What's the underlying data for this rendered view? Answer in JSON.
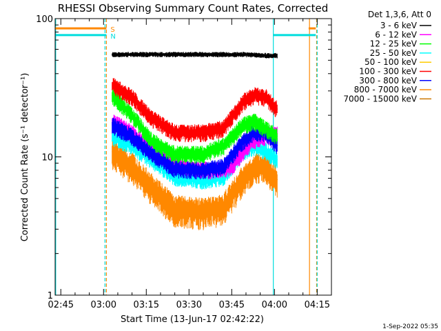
{
  "chart_data": {
    "type": "line",
    "title": "RHESSI Observing Summary Count Rates, Corrected",
    "xlabel": "Start Time (13-Jun-17 02:42:22)",
    "ylabel": "Corrected Count Rate (s⁻¹ detector⁻¹)",
    "yscale": "log",
    "ylim": [
      1,
      100
    ],
    "xlim_minutes": [
      163,
      260
    ],
    "x_ticks": [
      {
        "label": "02:45",
        "minute": 165
      },
      {
        "label": "03:00",
        "minute": 180
      },
      {
        "label": "03:15",
        "minute": 195
      },
      {
        "label": "03:30",
        "minute": 210
      },
      {
        "label": "03:45",
        "minute": 225
      },
      {
        "label": "04:00",
        "minute": 240
      },
      {
        "label": "04:15",
        "minute": 255
      }
    ],
    "y_ticks": [
      {
        "label": "1",
        "value": 1
      },
      {
        "label": "10",
        "value": 10
      },
      {
        "label": "100",
        "value": 100
      }
    ],
    "legend_title": "Det 1,3,6, Att 0",
    "legend_position": "right, outside plot",
    "series": [
      {
        "name": "3 - 6 keV",
        "color": "#000000",
        "profile": [
          55,
          55,
          55,
          55,
          55,
          55,
          54,
          54
        ],
        "points": [
          [
            183,
            55
          ],
          [
            190,
            55
          ],
          [
            200,
            55
          ],
          [
            210,
            55
          ],
          [
            220,
            55
          ],
          [
            230,
            55
          ],
          [
            236,
            54
          ],
          [
            241,
            54
          ]
        ]
      },
      {
        "name": "6 - 12 keV",
        "color": "#ff00ff",
        "profile": [
          18,
          15,
          11,
          8.3,
          8,
          8.5,
          13,
          15
        ],
        "points": [
          [
            183,
            18
          ],
          [
            190,
            15
          ],
          [
            197,
            11
          ],
          [
            210,
            8.3
          ],
          [
            218,
            8
          ],
          [
            225,
            8.5
          ],
          [
            232,
            13
          ],
          [
            241,
            15
          ]
        ]
      },
      {
        "name": "12 - 25 keV",
        "color": "#00ff00",
        "profile": [
          28,
          20,
          13,
          10.5,
          10.5,
          12,
          17,
          18,
          16,
          14
        ],
        "points": [
          [
            183,
            28
          ],
          [
            190,
            20
          ],
          [
            197,
            13
          ],
          [
            205,
            10.5
          ],
          [
            215,
            10.5
          ],
          [
            222,
            12
          ],
          [
            229,
            17
          ],
          [
            233,
            18
          ],
          [
            237,
            16
          ],
          [
            241,
            14
          ]
        ]
      },
      {
        "name": "25 - 50 keV",
        "color": "#00ffff",
        "profile": [
          14,
          12,
          9.5,
          7.2,
          6.8,
          7.2,
          11,
          12,
          11,
          9.5
        ],
        "points": [
          [
            183,
            14
          ],
          [
            190,
            12
          ],
          [
            197,
            9.5
          ],
          [
            205,
            7.2
          ],
          [
            215,
            6.8
          ],
          [
            222,
            7.2
          ],
          [
            229,
            11
          ],
          [
            233,
            12
          ],
          [
            237,
            11
          ],
          [
            241,
            9.5
          ]
        ]
      },
      {
        "name": "50 - 100 keV",
        "color": "#ffcc00",
        "profile": [],
        "points": []
      },
      {
        "name": "100 - 300 keV",
        "color": "#ff0000",
        "profile": [
          33,
          27,
          19,
          15,
          15,
          16,
          25,
          28,
          27,
          22
        ],
        "points": [
          [
            183,
            33
          ],
          [
            190,
            27
          ],
          [
            197,
            19
          ],
          [
            205,
            15
          ],
          [
            215,
            15
          ],
          [
            222,
            16
          ],
          [
            229,
            25
          ],
          [
            233,
            28
          ],
          [
            237,
            27
          ],
          [
            241,
            22
          ]
        ]
      },
      {
        "name": "300 - 800 keV",
        "color": "#0000ff",
        "profile": [
          17,
          14,
          10.5,
          8.2,
          8,
          8.5,
          13,
          15,
          15,
          12
        ],
        "points": [
          [
            183,
            17
          ],
          [
            190,
            14
          ],
          [
            197,
            10.5
          ],
          [
            205,
            8.2
          ],
          [
            215,
            8
          ],
          [
            222,
            8.5
          ],
          [
            229,
            13
          ],
          [
            233,
            15
          ],
          [
            237,
            15
          ],
          [
            241,
            12
          ]
        ]
      },
      {
        "name": "800 - 7000 keV",
        "color": "#ff8800",
        "profile": [
          11,
          8.5,
          6,
          4.2,
          4,
          4.3,
          7,
          8.5,
          8.5,
          6.8
        ],
        "points": [
          [
            183,
            11
          ],
          [
            190,
            8.5
          ],
          [
            197,
            6
          ],
          [
            205,
            4.2
          ],
          [
            215,
            4
          ],
          [
            222,
            4.3
          ],
          [
            229,
            7
          ],
          [
            233,
            8.5
          ],
          [
            237,
            8.5
          ],
          [
            241,
            6.8
          ]
        ]
      },
      {
        "name": "7000 - 15000 keV",
        "color": "#cc7700",
        "profile": [],
        "points": []
      }
    ],
    "flags": [
      {
        "label": "S",
        "color": "#ff8800",
        "level": 85,
        "segments": [
          [
            163,
            181
          ],
          [
            252,
            254.5
          ]
        ]
      },
      {
        "label": "N",
        "color": "#00dddd",
        "level": 76,
        "segments": [
          [
            163,
            181
          ],
          [
            239.5,
            254.5
          ]
        ]
      }
    ],
    "markers": [
      {
        "kind": "orange-dashed",
        "minute": 181
      },
      {
        "kind": "orange-solid",
        "minute": 252.3
      },
      {
        "kind": "orange-dashed",
        "minute": 254.8
      },
      {
        "kind": "cyan-solid",
        "minute": 163.2
      },
      {
        "kind": "cyan-dashed",
        "minute": 180.5
      },
      {
        "kind": "cyan-solid",
        "minute": 239.6
      },
      {
        "kind": "cyan-dashed",
        "minute": 255
      }
    ],
    "grid": false,
    "footer": "1-Sep-2022 05:35"
  }
}
